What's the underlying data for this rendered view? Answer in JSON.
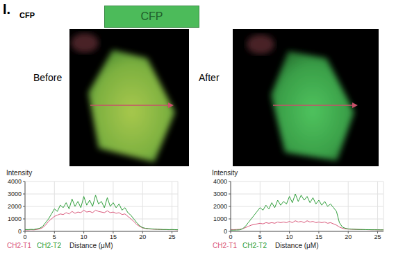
{
  "panel_label": "I.",
  "header": {
    "label": "CFP",
    "box_label": "CFP"
  },
  "images": [
    {
      "label": "Before"
    },
    {
      "label": "After"
    }
  ],
  "chart_data": [
    {
      "type": "line",
      "ylabel": "Intensity",
      "xlabel": "Distance (μM)",
      "xlim": [
        0,
        26
      ],
      "xticks": [
        0,
        5,
        10,
        15,
        20,
        25
      ],
      "ylim": [
        0,
        4000
      ],
      "yticks": [
        0,
        1000,
        2000,
        3000,
        4000
      ],
      "grid": true,
      "legend": "bottom-left",
      "x": [
        0,
        0.5,
        1,
        1.5,
        2,
        2.5,
        3,
        3.5,
        4,
        4.5,
        5,
        5.5,
        6,
        6.5,
        7,
        7.5,
        8,
        8.5,
        9,
        9.5,
        10,
        10.5,
        11,
        11.5,
        12,
        12.5,
        13,
        13.5,
        14,
        14.5,
        15,
        15.5,
        16,
        16.5,
        17,
        17.5,
        18,
        18.5,
        19,
        19.5,
        20,
        20.5,
        21,
        21.5,
        22,
        22.5,
        23,
        23.5,
        24,
        24.5,
        25,
        25.5,
        26
      ],
      "series": [
        {
          "name": "CH2-T1",
          "color": "#d9577a",
          "values": [
            120,
            110,
            130,
            120,
            150,
            200,
            300,
            500,
            800,
            1000,
            1200,
            1300,
            1400,
            1350,
            1500,
            1400,
            1600,
            1450,
            1550,
            1500,
            1700,
            1550,
            1600,
            1500,
            1700,
            1600,
            1550,
            1500,
            1650,
            1500,
            1550,
            1450,
            1500,
            1350,
            1400,
            1200,
            1000,
            800,
            550,
            400,
            280,
            230,
            200,
            180,
            170,
            160,
            150,
            140,
            140,
            130,
            140,
            130,
            120
          ]
        },
        {
          "name": "CH2-T2",
          "color": "#2f9e3a",
          "values": [
            150,
            140,
            160,
            150,
            200,
            250,
            400,
            700,
            1000,
            1400,
            1800,
            1600,
            2100,
            1900,
            2300,
            1800,
            2600,
            2000,
            2400,
            1900,
            2800,
            2100,
            2500,
            2000,
            2900,
            2200,
            2400,
            1900,
            2700,
            2000,
            2300,
            1900,
            2200,
            1700,
            1900,
            1500,
            1300,
            1000,
            700,
            450,
            300,
            250,
            220,
            200,
            180,
            170,
            160,
            150,
            150,
            140,
            150,
            140,
            130
          ]
        }
      ]
    },
    {
      "type": "line",
      "ylabel": "Intensity",
      "xlabel": "Distance (μM)",
      "xlim": [
        0,
        26
      ],
      "xticks": [
        0,
        5,
        10,
        15,
        20,
        25
      ],
      "ylim": [
        0,
        4000
      ],
      "yticks": [
        0,
        1000,
        2000,
        3000,
        4000
      ],
      "grid": true,
      "legend": "bottom-left",
      "x": [
        0,
        0.5,
        1,
        1.5,
        2,
        2.5,
        3,
        3.5,
        4,
        4.5,
        5,
        5.5,
        6,
        6.5,
        7,
        7.5,
        8,
        8.5,
        9,
        9.5,
        10,
        10.5,
        11,
        11.5,
        12,
        12.5,
        13,
        13.5,
        14,
        14.5,
        15,
        15.5,
        16,
        16.5,
        17,
        17.5,
        18,
        18.5,
        19,
        19.5,
        20,
        20.5,
        21,
        21.5,
        22,
        22.5,
        23,
        23.5,
        24,
        24.5,
        25,
        25.5,
        26
      ],
      "series": [
        {
          "name": "CH2-T1",
          "color": "#d9577a",
          "values": [
            150,
            140,
            150,
            160,
            200,
            300,
            400,
            500,
            550,
            600,
            650,
            600,
            700,
            650,
            700,
            650,
            750,
            700,
            750,
            700,
            800,
            700,
            850,
            750,
            800,
            700,
            850,
            750,
            800,
            700,
            750,
            700,
            750,
            650,
            700,
            600,
            500,
            350,
            250,
            200,
            180,
            170,
            160,
            150,
            150,
            140,
            140,
            130,
            130,
            130,
            120,
            120,
            120
          ]
        },
        {
          "name": "CH2-T2",
          "color": "#2f9e3a",
          "values": [
            100,
            100,
            110,
            120,
            200,
            400,
            700,
            1000,
            1300,
            1600,
            1900,
            1700,
            2100,
            1800,
            2300,
            1900,
            2500,
            2100,
            2400,
            2200,
            2800,
            2300,
            3000,
            2400,
            2900,
            2500,
            2800,
            2300,
            2700,
            2200,
            2500,
            2100,
            2400,
            2000,
            2200,
            1900,
            1600,
            700,
            350,
            250,
            200,
            180,
            170,
            160,
            150,
            150,
            140,
            140,
            130,
            130,
            130,
            120,
            120
          ]
        }
      ]
    }
  ]
}
